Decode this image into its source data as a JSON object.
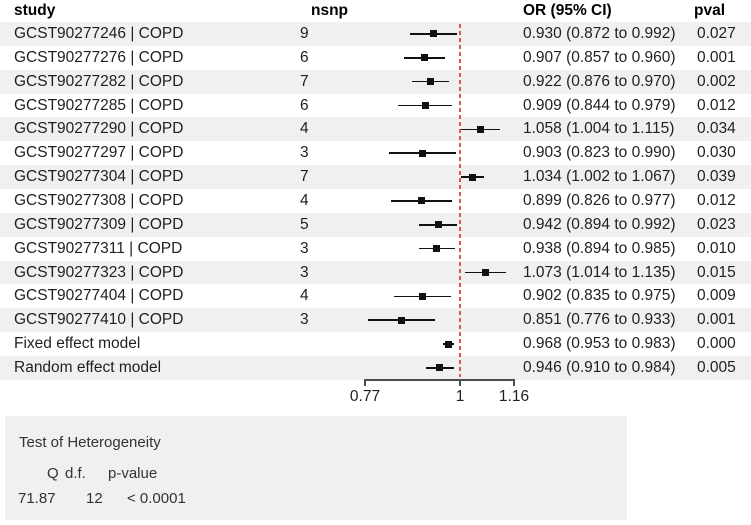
{
  "header": {
    "study": "study",
    "nsnp": "nsnp",
    "or": "OR (95% CI)",
    "pval": "pval"
  },
  "chart_data": {
    "type": "scatter",
    "variant": "forest-plot",
    "x_scale": "log",
    "xlim": [
      0.77,
      1.16
    ],
    "x_tick_values": [
      0.77,
      1,
      1.16
    ],
    "x_ticks": [
      "0.77",
      "1",
      "1.16"
    ],
    "reference_line": 1,
    "studies": [
      {
        "study": "GCST90277246 | COPD",
        "nsnp": "9",
        "or": 0.93,
        "ci_low": 0.872,
        "ci_high": 0.992,
        "or_text": "0.930 (0.872 to 0.992)",
        "pval": "0.027"
      },
      {
        "study": "GCST90277276 | COPD",
        "nsnp": "6",
        "or": 0.907,
        "ci_low": 0.857,
        "ci_high": 0.96,
        "or_text": "0.907 (0.857 to 0.960)",
        "pval": "0.001"
      },
      {
        "study": "GCST90277282 | COPD",
        "nsnp": "7",
        "or": 0.922,
        "ci_low": 0.876,
        "ci_high": 0.97,
        "or_text": "0.922 (0.876 to 0.970)",
        "pval": "0.002"
      },
      {
        "study": "GCST90277285 | COPD",
        "nsnp": "6",
        "or": 0.909,
        "ci_low": 0.844,
        "ci_high": 0.979,
        "or_text": "0.909 (0.844 to 0.979)",
        "pval": "0.012"
      },
      {
        "study": "GCST90277290 | COPD",
        "nsnp": "4",
        "or": 1.058,
        "ci_low": 1.004,
        "ci_high": 1.115,
        "or_text": "1.058 (1.004 to 1.115)",
        "pval": "0.034"
      },
      {
        "study": "GCST90277297 | COPD",
        "nsnp": "3",
        "or": 0.903,
        "ci_low": 0.823,
        "ci_high": 0.99,
        "or_text": "0.903 (0.823 to 0.990)",
        "pval": "0.030"
      },
      {
        "study": "GCST90277304 | COPD",
        "nsnp": "7",
        "or": 1.034,
        "ci_low": 1.002,
        "ci_high": 1.067,
        "or_text": "1.034 (1.002 to 1.067)",
        "pval": "0.039"
      },
      {
        "study": "GCST90277308 | COPD",
        "nsnp": "4",
        "or": 0.899,
        "ci_low": 0.826,
        "ci_high": 0.977,
        "or_text": "0.899 (0.826 to 0.977)",
        "pval": "0.012"
      },
      {
        "study": "GCST90277309 | COPD",
        "nsnp": "5",
        "or": 0.942,
        "ci_low": 0.894,
        "ci_high": 0.992,
        "or_text": "0.942 (0.894 to 0.992)",
        "pval": "0.023"
      },
      {
        "study": "GCST90277311 | COPD",
        "nsnp": "3",
        "or": 0.938,
        "ci_low": 0.894,
        "ci_high": 0.985,
        "or_text": "0.938 (0.894 to 0.985)",
        "pval": "0.010"
      },
      {
        "study": "GCST90277323 | COPD",
        "nsnp": "3",
        "or": 1.073,
        "ci_low": 1.014,
        "ci_high": 1.135,
        "or_text": "1.073 (1.014 to 1.135)",
        "pval": "0.015"
      },
      {
        "study": "GCST90277404 | COPD",
        "nsnp": "4",
        "or": 0.902,
        "ci_low": 0.835,
        "ci_high": 0.975,
        "or_text": "0.902 (0.835 to 0.975)",
        "pval": "0.009"
      },
      {
        "study": "GCST90277410 | COPD",
        "nsnp": "3",
        "or": 0.851,
        "ci_low": 0.776,
        "ci_high": 0.933,
        "or_text": "0.851 (0.776 to 0.933)",
        "pval": "0.001"
      }
    ],
    "summaries": [
      {
        "study": "Fixed effect model",
        "nsnp": "",
        "or": 0.968,
        "ci_low": 0.953,
        "ci_high": 0.983,
        "or_text": "0.968 (0.953 to 0.983)",
        "pval": "0.000"
      },
      {
        "study": "Random effect model",
        "nsnp": "",
        "or": 0.946,
        "ci_low": 0.91,
        "ci_high": 0.984,
        "or_text": "0.946 (0.910 to 0.984)",
        "pval": "0.005"
      }
    ]
  },
  "heterogeneity": {
    "title": "Test of Heterogeneity",
    "q_label": "Q",
    "df_label": "d.f.",
    "p_label": "p-value",
    "q": "71.87",
    "df": "12",
    "p": "< 0.0001"
  },
  "colors": {
    "stripe": "#f0f0f0",
    "reference_line": "#e25553",
    "marker": "#111111",
    "axis": "#4d4d4d",
    "text": "#1f1f1f"
  }
}
